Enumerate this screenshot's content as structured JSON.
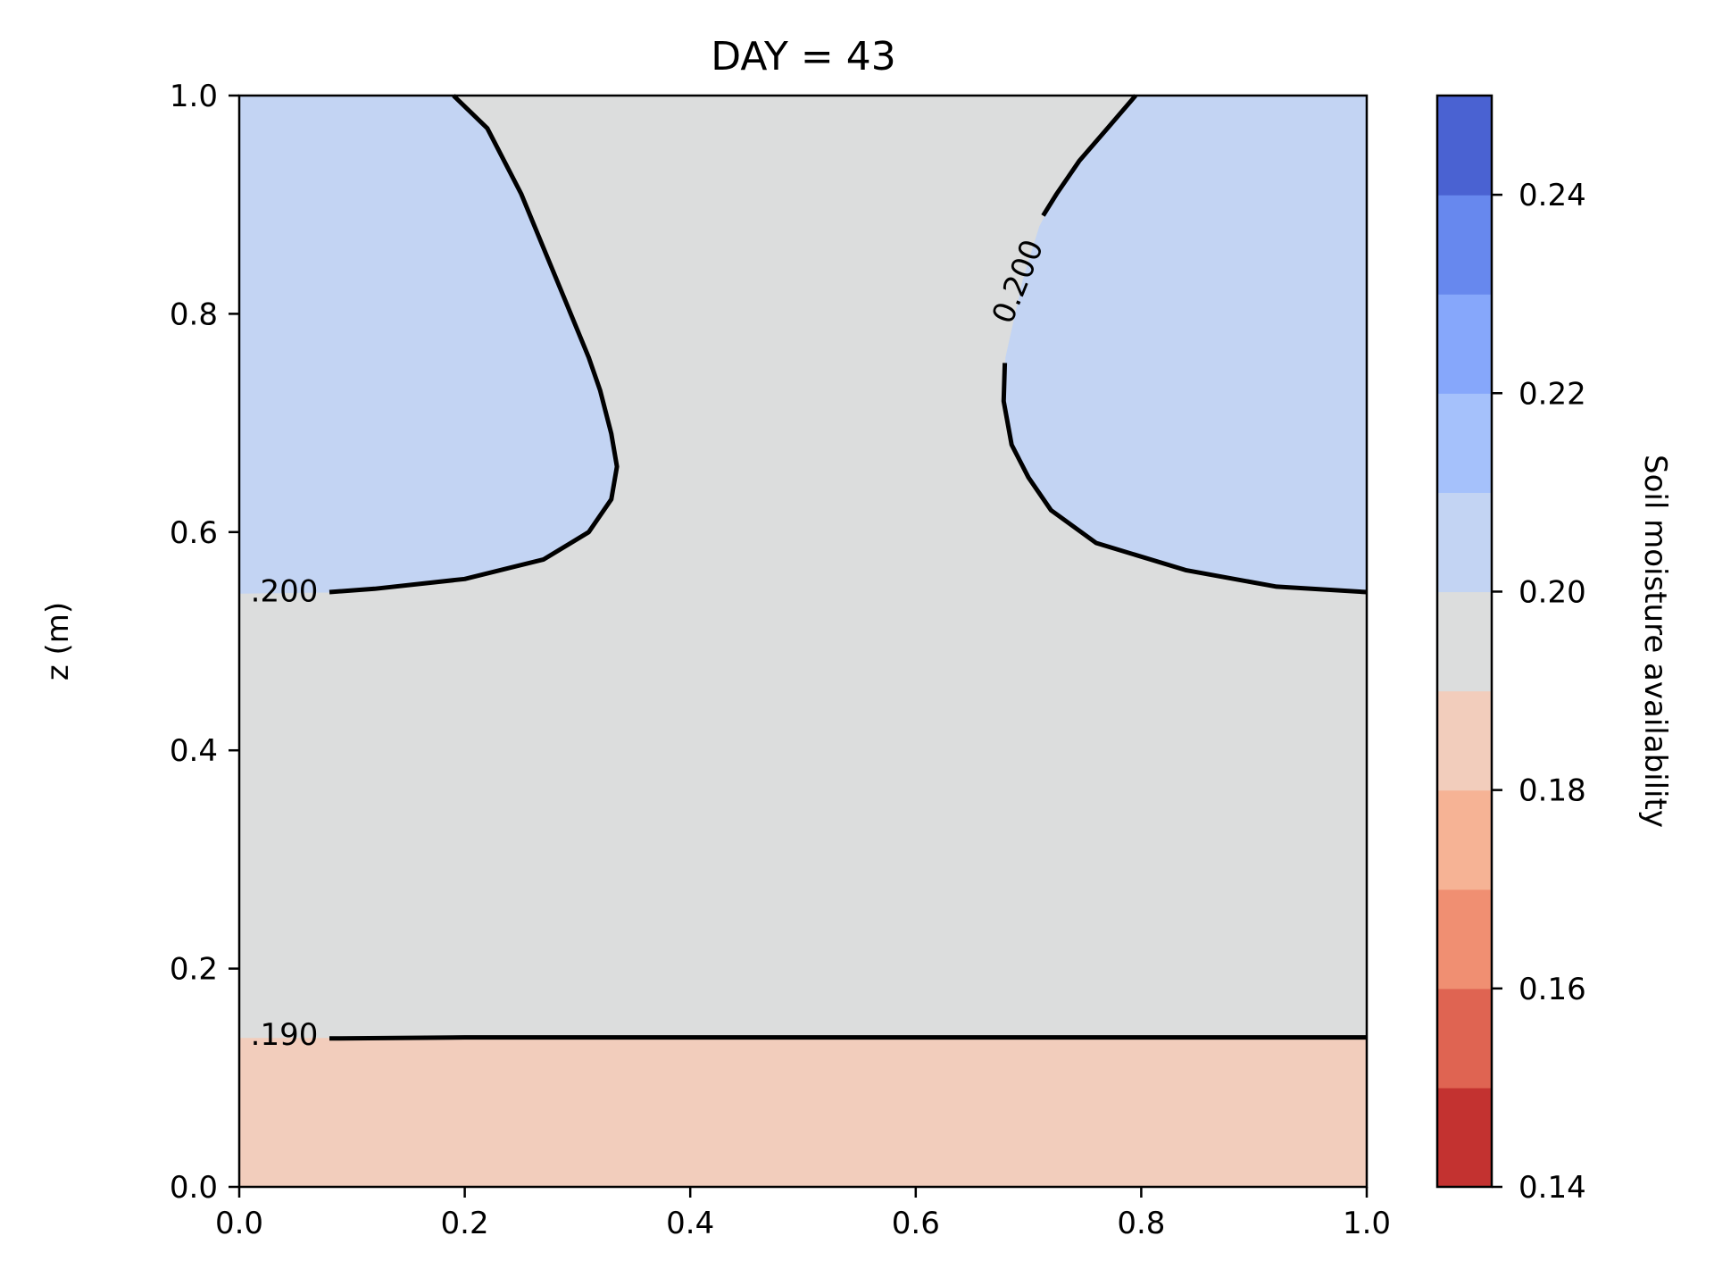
{
  "chart_data": {
    "type": "contourf",
    "title": "DAY = 43",
    "xlabel": "",
    "ylabel": "z (m)",
    "xlim": [
      0.0,
      1.0
    ],
    "ylim": [
      0.0,
      1.0
    ],
    "x_ticks": [
      "0.0",
      "0.2",
      "0.4",
      "0.6",
      "0.8",
      "1.0"
    ],
    "y_ticks": [
      "0.0",
      "0.2",
      "0.4",
      "0.6",
      "0.8",
      "1.0"
    ],
    "grid": false,
    "colorbar": {
      "label": "Soil moisture availability",
      "range": [
        0.14,
        0.25
      ],
      "tick_values": [
        0.14,
        0.16,
        0.18,
        0.2,
        0.22,
        0.24
      ],
      "tick_labels": [
        "0.14",
        "0.16",
        "0.18",
        "0.20",
        "0.22",
        "0.24"
      ],
      "levels": [
        0.14,
        0.15,
        0.16,
        0.17,
        0.18,
        0.19,
        0.2,
        0.21,
        0.22,
        0.23,
        0.24,
        0.25
      ],
      "colors": [
        "#c33230",
        "#df6452",
        "#f08f72",
        "#f6b395",
        "#f2cdbc",
        "#dcdddd",
        "#c3d4f3",
        "#a5c1fb",
        "#86a7fb",
        "#6788ee",
        "#4a62d2"
      ]
    },
    "regions": [
      {
        "name": "low",
        "range": [
          0.18,
          0.19
        ],
        "color": "#f2cdbc",
        "boundary": [
          [
            0.0,
            0.0
          ],
          [
            1.0,
            0.0
          ],
          [
            1.0,
            0.137
          ],
          [
            0.6,
            0.137
          ],
          [
            0.4,
            0.137
          ],
          [
            0.08,
            0.136
          ],
          [
            0.0,
            0.136
          ]
        ]
      },
      {
        "name": "mid",
        "range": [
          0.19,
          0.2
        ],
        "color": "#dcdddd"
      },
      {
        "name": "high-left",
        "range": [
          0.2,
          0.21
        ],
        "color": "#c3d4f3",
        "boundary": [
          [
            0.0,
            1.0
          ],
          [
            0.19,
            1.0
          ],
          [
            0.22,
            0.97
          ],
          [
            0.25,
            0.91
          ],
          [
            0.27,
            0.86
          ],
          [
            0.29,
            0.81
          ],
          [
            0.31,
            0.76
          ],
          [
            0.32,
            0.73
          ],
          [
            0.33,
            0.69
          ],
          [
            0.335,
            0.66
          ],
          [
            0.33,
            0.63
          ],
          [
            0.31,
            0.6
          ],
          [
            0.27,
            0.575
          ],
          [
            0.2,
            0.557
          ],
          [
            0.12,
            0.548
          ],
          [
            0.08,
            0.545
          ],
          [
            0.0,
            0.544
          ]
        ]
      },
      {
        "name": "high-right",
        "range": [
          0.2,
          0.21
        ],
        "color": "#c3d4f3",
        "boundary": [
          [
            1.0,
            1.0
          ],
          [
            0.795,
            1.0
          ],
          [
            0.77,
            0.97
          ],
          [
            0.745,
            0.94
          ],
          [
            0.725,
            0.91
          ],
          [
            0.71,
            0.88
          ],
          [
            0.695,
            0.83
          ],
          [
            0.68,
            0.76
          ],
          [
            0.678,
            0.72
          ],
          [
            0.685,
            0.68
          ],
          [
            0.7,
            0.65
          ],
          [
            0.72,
            0.62
          ],
          [
            0.76,
            0.59
          ],
          [
            0.84,
            0.565
          ],
          [
            0.92,
            0.55
          ],
          [
            1.0,
            0.545
          ]
        ]
      }
    ],
    "contour_lines": [
      {
        "level": 0.19,
        "label": ".190",
        "label_at": [
          0.04,
          0.138
        ],
        "points": [
          [
            0.08,
            0.136
          ],
          [
            0.2,
            0.137
          ],
          [
            0.4,
            0.137
          ],
          [
            0.6,
            0.137
          ],
          [
            0.8,
            0.137
          ],
          [
            1.0,
            0.137
          ]
        ]
      },
      {
        "level": 0.2,
        "label": ".200",
        "label_at": [
          0.04,
          0.544
        ],
        "points": [
          [
            0.08,
            0.545
          ],
          [
            0.12,
            0.548
          ],
          [
            0.2,
            0.557
          ],
          [
            0.27,
            0.575
          ],
          [
            0.31,
            0.6
          ],
          [
            0.33,
            0.63
          ],
          [
            0.335,
            0.66
          ],
          [
            0.33,
            0.69
          ],
          [
            0.32,
            0.73
          ],
          [
            0.31,
            0.76
          ],
          [
            0.29,
            0.81
          ],
          [
            0.27,
            0.86
          ],
          [
            0.25,
            0.91
          ],
          [
            0.22,
            0.97
          ],
          [
            0.19,
            1.0
          ]
        ]
      },
      {
        "level": 0.2,
        "label": "0.200",
        "label_at": [
          0.692,
          0.829
        ],
        "label_rotation": -68,
        "points": [
          [
            1.0,
            0.545
          ],
          [
            0.92,
            0.55
          ],
          [
            0.84,
            0.565
          ],
          [
            0.76,
            0.59
          ],
          [
            0.72,
            0.62
          ],
          [
            0.7,
            0.65
          ],
          [
            0.685,
            0.68
          ],
          [
            0.678,
            0.72
          ],
          [
            0.679,
            0.755
          ]
        ],
        "points_after_label": [
          [
            0.713,
            0.89
          ],
          [
            0.725,
            0.91
          ],
          [
            0.745,
            0.94
          ],
          [
            0.77,
            0.97
          ],
          [
            0.795,
            1.0
          ]
        ]
      }
    ]
  }
}
